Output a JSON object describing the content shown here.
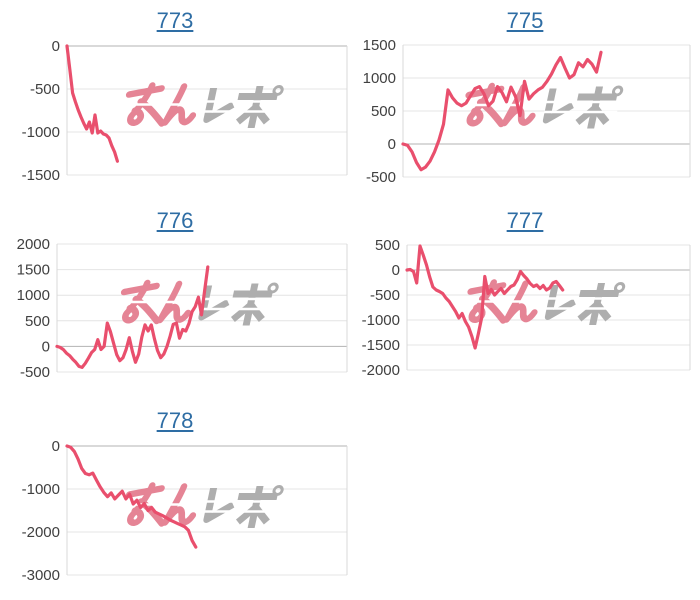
{
  "page": {
    "background": "#ffffff"
  },
  "colors": {
    "title_link": "#2e6da4",
    "line": "#e94f6d",
    "gridline": "#e4e4e4",
    "zero_gridline": "#b3b3b3",
    "axis_line": "#d9d9d9",
    "tick_label": "#404040",
    "watermark_pink": "#e58495",
    "watermark_gray": "#aeaeae"
  },
  "watermark": {
    "name": "minrepo-logo",
    "text": "みんレポ"
  },
  "chart_data": [
    {
      "type": "line",
      "title": "773",
      "yticks": [
        0,
        -500,
        -1000,
        -1500
      ],
      "ylim": [
        -1500,
        0
      ],
      "x_extent_fraction": 0.18,
      "values": [
        0,
        -270,
        -546,
        -650,
        -744,
        -826,
        -900,
        -965,
        -884,
        -1012,
        -802,
        -1012,
        -988,
        -1023,
        -1035,
        -1070,
        -1160,
        -1233,
        -1340
      ]
    },
    {
      "type": "line",
      "title": "775",
      "yticks": [
        1500,
        1000,
        500,
        0,
        -500
      ],
      "ylim": [
        -500,
        1500
      ],
      "x_extent_fraction": 0.69,
      "values": [
        0,
        -20,
        -120,
        -280,
        -390,
        -350,
        -260,
        -120,
        60,
        300,
        820,
        700,
        620,
        580,
        620,
        730,
        840,
        870,
        760,
        580,
        650,
        870,
        780,
        640,
        860,
        720,
        430,
        950,
        680,
        760,
        820,
        860,
        950,
        1060,
        1200,
        1310,
        1150,
        1000,
        1050,
        1230,
        1170,
        1280,
        1210,
        1090,
        1390
      ]
    },
    {
      "type": "line",
      "title": "776",
      "yticks": [
        2000,
        1500,
        1000,
        500,
        0,
        -500
      ],
      "ylim": [
        -500,
        2000
      ],
      "x_extent_fraction": 0.52,
      "values": [
        0,
        -20,
        -60,
        -130,
        -180,
        -250,
        -310,
        -390,
        -410,
        -330,
        -230,
        -120,
        -60,
        130,
        -60,
        0,
        455,
        290,
        60,
        -160,
        -280,
        -220,
        -60,
        170,
        -100,
        -310,
        -150,
        180,
        420,
        300,
        420,
        150,
        -80,
        -220,
        -150,
        0,
        200,
        430,
        455,
        160,
        330,
        300,
        450,
        680,
        775,
        960,
        615,
        1100,
        1550
      ]
    },
    {
      "type": "line",
      "title": "777",
      "yticks": [
        500,
        0,
        -500,
        -1000,
        -1500,
        -2000
      ],
      "ylim": [
        -2000,
        500
      ],
      "x_extent_fraction": 0.55,
      "values": [
        0,
        10,
        -30,
        -260,
        480,
        300,
        100,
        -140,
        -340,
        -400,
        -430,
        -470,
        -560,
        -630,
        -730,
        -830,
        -960,
        -870,
        -1030,
        -1140,
        -1330,
        -1560,
        -1280,
        -960,
        -130,
        -470,
        -390,
        -500,
        -430,
        -370,
        -470,
        -400,
        -330,
        -300,
        -190,
        -30,
        -110,
        -180,
        -270,
        -330,
        -300,
        -370,
        -310,
        -400,
        -360,
        -260,
        -230,
        -310,
        -400
      ]
    },
    {
      "type": "line",
      "title": "778",
      "yticks": [
        0,
        -1000,
        -2000,
        -3000
      ],
      "ylim": [
        -3000,
        0
      ],
      "x_extent_fraction": 0.46,
      "values": [
        0,
        -30,
        -130,
        -300,
        -520,
        -640,
        -670,
        -630,
        -790,
        -950,
        -1080,
        -1180,
        -1090,
        -1230,
        -1140,
        -1050,
        -1230,
        -1120,
        -1350,
        -1260,
        -1430,
        -1340,
        -1500,
        -1430,
        -1540,
        -1580,
        -1620,
        -1670,
        -1720,
        -1760,
        -1800,
        -1840,
        -1880,
        -1960,
        -2200,
        -2350
      ]
    }
  ]
}
